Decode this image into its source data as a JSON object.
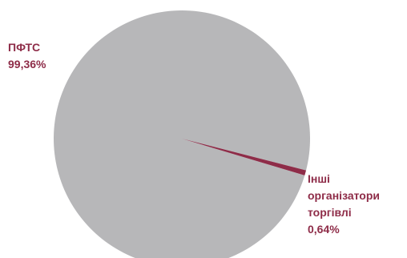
{
  "chart_data": {
    "type": "pie",
    "title": "",
    "slices": [
      {
        "name_lines": [
          "ПФТС"
        ],
        "value": 99.36,
        "value_label": "99,36%",
        "color": "#b7b7b9"
      },
      {
        "name_lines": [
          "Інші",
          "організатори",
          "торгівлі"
        ],
        "value": 0.64,
        "value_label": "0,64%",
        "color": "#8e2c48"
      }
    ]
  }
}
